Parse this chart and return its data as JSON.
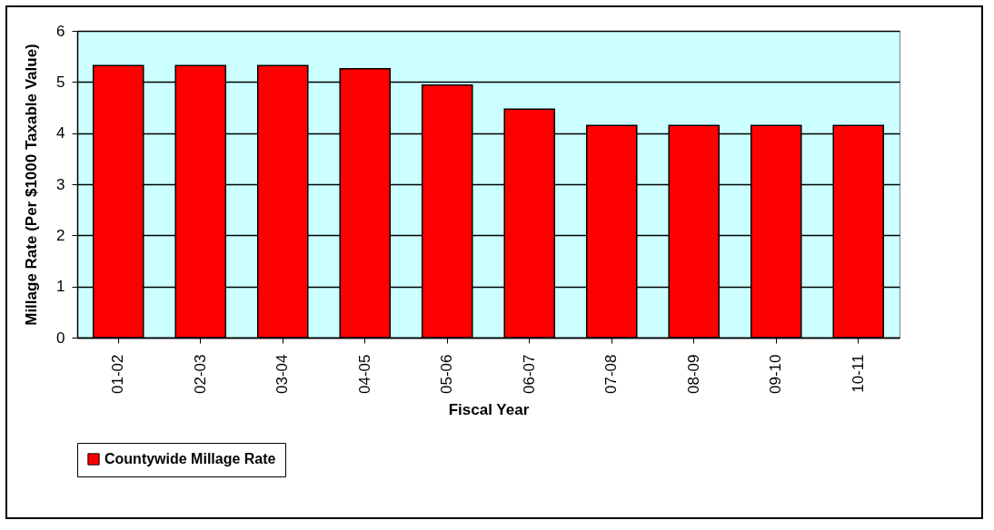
{
  "chart_data": {
    "type": "bar",
    "xlabel": "Fiscal Year",
    "ylabel": "Millage Rate (Per $1000 Taxable Value)",
    "categories": [
      "01-02",
      "02-03",
      "03-04",
      "04-05",
      "05-06",
      "06-07",
      "07-08",
      "08-09",
      "09-10",
      "10-11"
    ],
    "series": [
      {
        "name": "Countywide Millage Rate",
        "color": "#ff0000",
        "values": [
          5.32,
          5.32,
          5.32,
          5.26,
          4.94,
          4.47,
          4.15,
          4.15,
          4.15,
          4.15
        ]
      }
    ],
    "ylim": [
      0,
      6
    ],
    "yticks": [
      0,
      1,
      2,
      3,
      4,
      5,
      6
    ],
    "grid": "y",
    "legend": "bottom"
  }
}
